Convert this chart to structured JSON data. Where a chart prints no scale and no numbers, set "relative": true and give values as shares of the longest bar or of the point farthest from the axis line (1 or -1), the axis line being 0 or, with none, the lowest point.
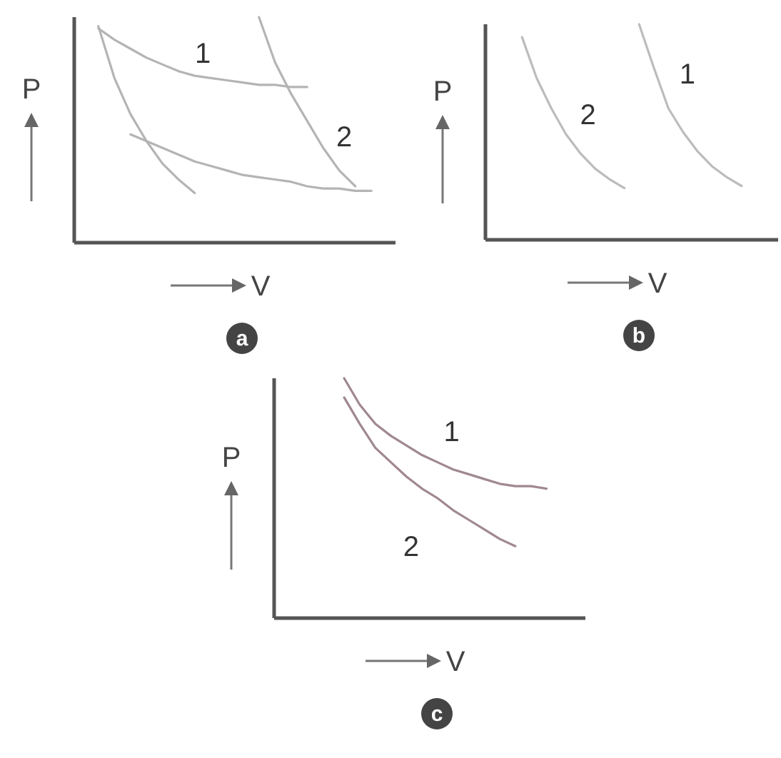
{
  "chart_data": [
    {
      "type": "line",
      "title": "a",
      "xlabel": "V",
      "ylabel": "P",
      "relative": true,
      "categories": [
        null,
        null,
        null,
        null,
        null,
        null,
        null,
        null,
        null,
        null,
        null,
        null,
        null,
        null,
        null,
        null,
        null,
        null,
        null,
        null
      ],
      "series": [
        {
          "color": "#b4b4b4",
          "values": [
            null,
            0.96,
            0.73,
            0.57,
            0.45,
            0.35,
            0.28,
            0.22,
            null,
            null,
            null,
            null,
            null,
            null,
            null,
            null,
            null,
            null,
            null,
            null
          ]
        },
        {
          "name": "1",
          "color": "#b4b4b4",
          "values": [
            null,
            0.95,
            0.9,
            0.86,
            0.82,
            0.79,
            0.76,
            0.74,
            0.73,
            0.72,
            0.71,
            0.7,
            0.7,
            0.69,
            0.69,
            null,
            null,
            null,
            null,
            null
          ]
        },
        {
          "name": "2",
          "color": "#b4b4b4",
          "values": [
            null,
            null,
            null,
            null,
            null,
            null,
            null,
            null,
            null,
            null,
            null,
            1.0,
            0.8,
            0.66,
            0.54,
            0.42,
            0.32,
            0.25,
            null,
            null
          ]
        },
        {
          "color": "#b4b4b4",
          "values": [
            null,
            null,
            null,
            0.48,
            0.45,
            0.42,
            0.39,
            0.36,
            0.34,
            0.32,
            0.3,
            0.29,
            0.28,
            0.27,
            0.25,
            0.24,
            0.24,
            0.23,
            0.23,
            null
          ]
        }
      ]
    },
    {
      "type": "line",
      "title": "b",
      "xlabel": "V",
      "ylabel": "P",
      "relative": true,
      "categories": [
        null,
        null,
        null,
        null,
        null,
        null,
        null,
        null,
        null,
        null,
        null,
        null,
        null,
        null,
        null,
        null,
        null,
        null,
        null,
        null
      ],
      "series": [
        {
          "name": "2",
          "color": "#bcbcbc",
          "values": [
            null,
            null,
            0.94,
            0.75,
            0.61,
            0.49,
            0.4,
            0.33,
            0.28,
            0.24,
            null,
            null,
            null,
            null,
            null,
            null,
            null,
            null,
            null,
            null
          ]
        },
        {
          "name": "1",
          "color": "#bcbcbc",
          "values": [
            null,
            null,
            null,
            null,
            null,
            null,
            null,
            null,
            null,
            null,
            1.0,
            0.8,
            0.61,
            0.5,
            0.41,
            0.34,
            0.29,
            0.25,
            null,
            null
          ]
        }
      ]
    },
    {
      "type": "line",
      "title": "c",
      "xlabel": "V",
      "ylabel": "P",
      "relative": true,
      "categories": [
        null,
        null,
        null,
        null,
        null,
        null,
        null,
        null,
        null,
        null,
        null,
        null,
        null,
        null,
        null,
        null,
        null,
        null,
        null,
        null
      ],
      "series": [
        {
          "name": "1",
          "color": "#a08890",
          "values": [
            null,
            null,
            null,
            null,
            1.0,
            0.89,
            0.81,
            0.76,
            0.72,
            0.68,
            0.65,
            0.62,
            0.6,
            0.58,
            0.56,
            0.55,
            0.55,
            0.54,
            null,
            null
          ]
        },
        {
          "name": "2",
          "color": "#a08890",
          "values": [
            null,
            null,
            null,
            null,
            0.92,
            0.81,
            0.71,
            0.65,
            0.59,
            0.54,
            0.5,
            0.45,
            0.41,
            0.37,
            0.33,
            0.3,
            null,
            null,
            null,
            null
          ]
        }
      ]
    }
  ]
}
